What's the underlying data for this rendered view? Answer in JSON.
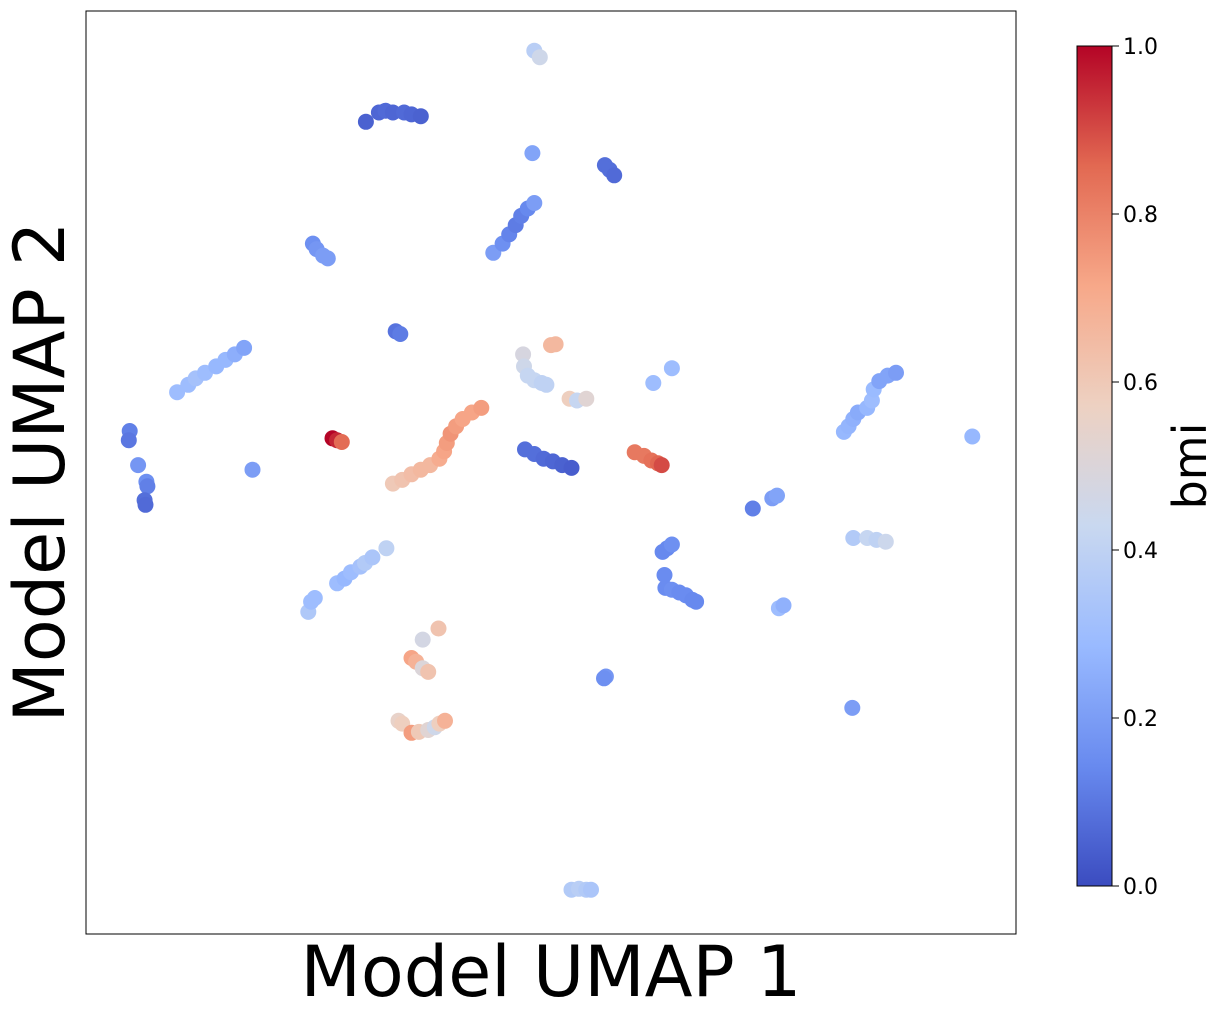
{
  "chart_data": {
    "type": "scatter",
    "title": "",
    "xlabel": "Model UMAP 1",
    "ylabel": "Model UMAP 2",
    "xlim": [
      0,
      100
    ],
    "ylim": [
      0,
      100
    ],
    "x_ticks_visible": false,
    "y_ticks_visible": false,
    "grid": false,
    "colorbar": {
      "label": "bmi",
      "range": [
        0.0,
        1.0
      ],
      "ticks": [
        "0.0",
        "0.2",
        "0.4",
        "0.6",
        "0.8",
        "1.0"
      ],
      "colormap": "coolwarm",
      "colors": [
        "#3b4cc0",
        "#688aef",
        "#99baff",
        "#c9d8f0",
        "#edd1c2",
        "#f7a889",
        "#e26952",
        "#b40426"
      ]
    },
    "points": [
      {
        "x": 30.1,
        "y": 88.0,
        "c": 0.05
      },
      {
        "x": 31.5,
        "y": 89.0,
        "c": 0.06
      },
      {
        "x": 32.2,
        "y": 89.2,
        "c": 0.07
      },
      {
        "x": 33.0,
        "y": 89.0,
        "c": 0.06
      },
      {
        "x": 34.2,
        "y": 89.0,
        "c": 0.07
      },
      {
        "x": 35.0,
        "y": 88.8,
        "c": 0.06
      },
      {
        "x": 36.0,
        "y": 88.6,
        "c": 0.05
      },
      {
        "x": 48.2,
        "y": 95.7,
        "c": 0.38
      },
      {
        "x": 48.8,
        "y": 95.0,
        "c": 0.45
      },
      {
        "x": 48.0,
        "y": 84.6,
        "c": 0.22
      },
      {
        "x": 55.8,
        "y": 83.3,
        "c": 0.08
      },
      {
        "x": 56.3,
        "y": 82.8,
        "c": 0.08
      },
      {
        "x": 56.8,
        "y": 82.2,
        "c": 0.07
      },
      {
        "x": 43.8,
        "y": 73.8,
        "c": 0.2
      },
      {
        "x": 44.8,
        "y": 74.8,
        "c": 0.16
      },
      {
        "x": 45.5,
        "y": 75.8,
        "c": 0.13
      },
      {
        "x": 46.2,
        "y": 76.8,
        "c": 0.11
      },
      {
        "x": 46.8,
        "y": 77.8,
        "c": 0.12
      },
      {
        "x": 47.5,
        "y": 78.6,
        "c": 0.14
      },
      {
        "x": 48.2,
        "y": 79.2,
        "c": 0.2
      },
      {
        "x": 24.4,
        "y": 74.8,
        "c": 0.16
      },
      {
        "x": 24.8,
        "y": 74.2,
        "c": 0.18
      },
      {
        "x": 25.5,
        "y": 73.5,
        "c": 0.2
      },
      {
        "x": 26.0,
        "y": 73.2,
        "c": 0.2
      },
      {
        "x": 33.3,
        "y": 65.3,
        "c": 0.09
      },
      {
        "x": 33.8,
        "y": 65.0,
        "c": 0.11
      },
      {
        "x": 9.8,
        "y": 58.7,
        "c": 0.3
      },
      {
        "x": 11.0,
        "y": 59.5,
        "c": 0.3
      },
      {
        "x": 11.8,
        "y": 60.2,
        "c": 0.32
      },
      {
        "x": 12.8,
        "y": 60.8,
        "c": 0.3
      },
      {
        "x": 14.0,
        "y": 61.5,
        "c": 0.28
      },
      {
        "x": 15.0,
        "y": 62.2,
        "c": 0.28
      },
      {
        "x": 16.0,
        "y": 62.8,
        "c": 0.25
      },
      {
        "x": 17.0,
        "y": 63.5,
        "c": 0.22
      },
      {
        "x": 4.7,
        "y": 54.5,
        "c": 0.12
      },
      {
        "x": 4.6,
        "y": 53.5,
        "c": 0.1
      },
      {
        "x": 5.6,
        "y": 50.8,
        "c": 0.18
      },
      {
        "x": 6.5,
        "y": 49.0,
        "c": 0.16
      },
      {
        "x": 6.6,
        "y": 48.5,
        "c": 0.12
      },
      {
        "x": 6.3,
        "y": 47.0,
        "c": 0.08
      },
      {
        "x": 6.4,
        "y": 46.5,
        "c": 0.07
      },
      {
        "x": 17.9,
        "y": 50.3,
        "c": 0.2
      },
      {
        "x": 26.5,
        "y": 53.7,
        "c": 1.0
      },
      {
        "x": 27.0,
        "y": 53.5,
        "c": 0.95
      },
      {
        "x": 27.5,
        "y": 53.3,
        "c": 0.85
      },
      {
        "x": 33.0,
        "y": 48.8,
        "c": 0.6
      },
      {
        "x": 34.0,
        "y": 49.2,
        "c": 0.62
      },
      {
        "x": 35.0,
        "y": 49.8,
        "c": 0.64
      },
      {
        "x": 36.0,
        "y": 50.3,
        "c": 0.66
      },
      {
        "x": 37.0,
        "y": 50.8,
        "c": 0.66
      },
      {
        "x": 38.0,
        "y": 51.5,
        "c": 0.7
      },
      {
        "x": 38.5,
        "y": 52.3,
        "c": 0.72
      },
      {
        "x": 38.8,
        "y": 53.2,
        "c": 0.74
      },
      {
        "x": 39.2,
        "y": 54.2,
        "c": 0.76
      },
      {
        "x": 39.8,
        "y": 55.0,
        "c": 0.74
      },
      {
        "x": 40.5,
        "y": 55.8,
        "c": 0.72
      },
      {
        "x": 41.5,
        "y": 56.5,
        "c": 0.72
      },
      {
        "x": 42.5,
        "y": 57.0,
        "c": 0.74
      },
      {
        "x": 47.0,
        "y": 62.8,
        "c": 0.48
      },
      {
        "x": 47.1,
        "y": 61.5,
        "c": 0.45
      },
      {
        "x": 47.5,
        "y": 60.5,
        "c": 0.42
      },
      {
        "x": 48.2,
        "y": 60.0,
        "c": 0.42
      },
      {
        "x": 49.0,
        "y": 59.7,
        "c": 0.4
      },
      {
        "x": 49.5,
        "y": 59.5,
        "c": 0.4
      },
      {
        "x": 50.0,
        "y": 63.8,
        "c": 0.66
      },
      {
        "x": 50.5,
        "y": 63.9,
        "c": 0.66
      },
      {
        "x": 52.0,
        "y": 58.0,
        "c": 0.58
      },
      {
        "x": 52.8,
        "y": 57.8,
        "c": 0.42
      },
      {
        "x": 53.8,
        "y": 58.0,
        "c": 0.52
      },
      {
        "x": 61.0,
        "y": 59.7,
        "c": 0.3
      },
      {
        "x": 63.0,
        "y": 61.3,
        "c": 0.3
      },
      {
        "x": 47.2,
        "y": 52.5,
        "c": 0.08
      },
      {
        "x": 48.2,
        "y": 52.0,
        "c": 0.08
      },
      {
        "x": 49.2,
        "y": 51.5,
        "c": 0.07
      },
      {
        "x": 50.2,
        "y": 51.2,
        "c": 0.06
      },
      {
        "x": 51.2,
        "y": 50.8,
        "c": 0.05
      },
      {
        "x": 52.2,
        "y": 50.5,
        "c": 0.04
      },
      {
        "x": 59.0,
        "y": 52.2,
        "c": 0.82
      },
      {
        "x": 60.0,
        "y": 51.8,
        "c": 0.82
      },
      {
        "x": 60.8,
        "y": 51.3,
        "c": 0.84
      },
      {
        "x": 61.5,
        "y": 51.0,
        "c": 0.86
      },
      {
        "x": 61.9,
        "y": 50.8,
        "c": 0.9
      },
      {
        "x": 81.5,
        "y": 54.4,
        "c": 0.28
      },
      {
        "x": 82.0,
        "y": 55.0,
        "c": 0.27
      },
      {
        "x": 82.5,
        "y": 55.8,
        "c": 0.26
      },
      {
        "x": 83.0,
        "y": 56.5,
        "c": 0.24
      },
      {
        "x": 84.0,
        "y": 57.0,
        "c": 0.28
      },
      {
        "x": 84.5,
        "y": 57.8,
        "c": 0.3
      },
      {
        "x": 84.7,
        "y": 59.0,
        "c": 0.29
      },
      {
        "x": 85.3,
        "y": 59.9,
        "c": 0.22
      },
      {
        "x": 86.2,
        "y": 60.5,
        "c": 0.22
      },
      {
        "x": 87.1,
        "y": 60.8,
        "c": 0.2
      },
      {
        "x": 95.3,
        "y": 53.9,
        "c": 0.28
      },
      {
        "x": 71.7,
        "y": 46.1,
        "c": 0.12
      },
      {
        "x": 73.8,
        "y": 47.2,
        "c": 0.2
      },
      {
        "x": 74.3,
        "y": 47.5,
        "c": 0.22
      },
      {
        "x": 82.5,
        "y": 42.9,
        "c": 0.36
      },
      {
        "x": 84.0,
        "y": 42.9,
        "c": 0.42
      },
      {
        "x": 85.0,
        "y": 42.7,
        "c": 0.4
      },
      {
        "x": 86.0,
        "y": 42.5,
        "c": 0.44
      },
      {
        "x": 62.0,
        "y": 41.4,
        "c": 0.14
      },
      {
        "x": 62.5,
        "y": 41.8,
        "c": 0.14
      },
      {
        "x": 63.0,
        "y": 42.2,
        "c": 0.16
      },
      {
        "x": 62.2,
        "y": 38.9,
        "c": 0.15
      },
      {
        "x": 62.3,
        "y": 37.5,
        "c": 0.15
      },
      {
        "x": 63.0,
        "y": 37.3,
        "c": 0.16
      },
      {
        "x": 63.8,
        "y": 37.0,
        "c": 0.15
      },
      {
        "x": 64.5,
        "y": 36.7,
        "c": 0.15
      },
      {
        "x": 65.2,
        "y": 36.2,
        "c": 0.14
      },
      {
        "x": 65.6,
        "y": 36.0,
        "c": 0.14
      },
      {
        "x": 74.5,
        "y": 35.3,
        "c": 0.3
      },
      {
        "x": 75.0,
        "y": 35.6,
        "c": 0.26
      },
      {
        "x": 23.9,
        "y": 34.9,
        "c": 0.35
      },
      {
        "x": 24.2,
        "y": 36.0,
        "c": 0.3
      },
      {
        "x": 24.6,
        "y": 36.4,
        "c": 0.3
      },
      {
        "x": 27.0,
        "y": 38.0,
        "c": 0.3
      },
      {
        "x": 27.8,
        "y": 38.5,
        "c": 0.28
      },
      {
        "x": 28.5,
        "y": 39.2,
        "c": 0.3
      },
      {
        "x": 29.5,
        "y": 39.8,
        "c": 0.32
      },
      {
        "x": 30.0,
        "y": 40.2,
        "c": 0.36
      },
      {
        "x": 30.8,
        "y": 40.8,
        "c": 0.34
      },
      {
        "x": 32.3,
        "y": 41.8,
        "c": 0.4
      },
      {
        "x": 36.2,
        "y": 31.9,
        "c": 0.47
      },
      {
        "x": 37.9,
        "y": 33.1,
        "c": 0.62
      },
      {
        "x": 35.0,
        "y": 29.9,
        "c": 0.72
      },
      {
        "x": 35.5,
        "y": 29.5,
        "c": 0.68
      },
      {
        "x": 36.2,
        "y": 28.8,
        "c": 0.5
      },
      {
        "x": 36.8,
        "y": 28.4,
        "c": 0.62
      },
      {
        "x": 33.6,
        "y": 23.1,
        "c": 0.55
      },
      {
        "x": 34.0,
        "y": 22.8,
        "c": 0.58
      },
      {
        "x": 35.0,
        "y": 21.8,
        "c": 0.74
      },
      {
        "x": 35.8,
        "y": 21.9,
        "c": 0.6
      },
      {
        "x": 36.8,
        "y": 22.1,
        "c": 0.52
      },
      {
        "x": 37.5,
        "y": 22.4,
        "c": 0.45
      },
      {
        "x": 38.0,
        "y": 22.8,
        "c": 0.58
      },
      {
        "x": 38.6,
        "y": 23.1,
        "c": 0.68
      },
      {
        "x": 55.9,
        "y": 27.9,
        "c": 0.18
      },
      {
        "x": 55.7,
        "y": 27.7,
        "c": 0.16
      },
      {
        "x": 82.4,
        "y": 24.5,
        "c": 0.2
      },
      {
        "x": 52.2,
        "y": 4.8,
        "c": 0.36
      },
      {
        "x": 53.0,
        "y": 4.9,
        "c": 0.38
      },
      {
        "x": 53.8,
        "y": 4.8,
        "c": 0.36
      },
      {
        "x": 54.3,
        "y": 4.8,
        "c": 0.34
      }
    ]
  }
}
